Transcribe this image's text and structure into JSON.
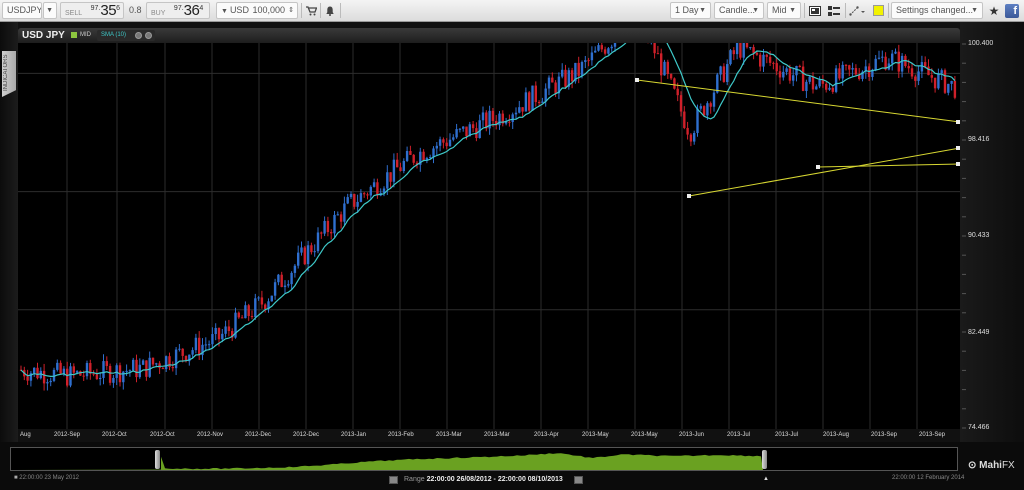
{
  "toolbar": {
    "symbol": "USDJPY",
    "sell_label": "SELL",
    "sell_price_prefix": "97.",
    "sell_price_big": "35",
    "sell_price_sup": "6",
    "spread": "0.8",
    "buy_label": "BUY",
    "buy_price_prefix": "97.",
    "buy_price_big": "36",
    "buy_price_sup": "4",
    "currency": "USD",
    "amount": "100,000",
    "timeframe": "1 Day",
    "chart_type": "Candle...",
    "price_type": "Mid",
    "settings": "Settings changed...",
    "icons": [
      "cart-icon",
      "bell-icon",
      "screenshot-icon",
      "layout-icon",
      "drawing-tool-icon",
      "color-swatch-icon",
      "star-icon",
      "facebook-icon"
    ],
    "color_swatch": "#f2f200"
  },
  "chart_header": {
    "symbol": "USD JPY",
    "mid_label": "MID",
    "indicator": "SMA (10)",
    "all_button": "ALL ✕",
    "indicators_tab": "INDICATORS"
  },
  "colors": {
    "bull": "#2f6fcf",
    "bear": "#d0202a",
    "sma": "#3ec9c9",
    "trendline": "#d8d832",
    "grid": "#2d2d2d",
    "navigator_fill": "#6aa121"
  },
  "navigator": {
    "start_date": "22:00:00 23 May 2012",
    "end_date": "22:00:00 12 February 2014",
    "range_label": "Range",
    "range_value": "22:00:00 26/08/2012 - 22:00:00 08/10/2013",
    "logo_main": "Mahi",
    "logo_fx": "FX"
  },
  "chart_data": {
    "type": "candlestick",
    "title": "USD JPY",
    "series": [
      {
        "name": "USDJPY Mid",
        "type": "candlestick"
      },
      {
        "name": "SMA (10)",
        "type": "line"
      }
    ],
    "y_ticks": [
      "100.400",
      "98.416",
      "90.433",
      "82.449",
      "74.466"
    ],
    "ylim": [
      74.466,
      100.4
    ],
    "x_ticks": [
      "Aug",
      "2012-Sep",
      "2012-Oct",
      "2012-Oct",
      "2012-Nov",
      "2012-Dec",
      "2012-Dec",
      "2013-Jan",
      "2013-Feb",
      "2013-Mar",
      "2013-Mar",
      "2013-Apr",
      "2013-May",
      "2013-May",
      "2013-Jun",
      "2013-Jul",
      "2013-Jul",
      "2013-Aug",
      "2013-Sep",
      "2013-Sep"
    ],
    "approx_close_path": [
      {
        "x": "2012-Aug",
        "y": 78.4
      },
      {
        "x": "2012-Sep",
        "y": 78.0
      },
      {
        "x": "2012-Oct",
        "y": 78.5
      },
      {
        "x": "2012-Nov",
        "y": 80.5
      },
      {
        "x": "2012-Dec",
        "y": 83.0
      },
      {
        "x": "2013-Jan",
        "y": 89.5
      },
      {
        "x": "2013-Feb",
        "y": 93.0
      },
      {
        "x": "2013-Mar",
        "y": 95.5
      },
      {
        "x": "2013-Apr",
        "y": 98.5
      },
      {
        "x": "2013-May",
        "y": 102.5
      },
      {
        "x": "2013-Jun",
        "y": 94.5
      },
      {
        "x": "2013-Jul",
        "y": 100.2
      },
      {
        "x": "2013-Aug",
        "y": 97.5
      },
      {
        "x": "2013-Sep",
        "y": 99.5
      },
      {
        "x": "2013-Oct",
        "y": 97.4
      }
    ],
    "annotations": [
      {
        "type": "trendline",
        "from": {
          "x": "2013-May",
          "y": 103.5
        },
        "to": {
          "x": "2013-Oct",
          "y": 100.0
        }
      },
      {
        "type": "trendline",
        "from": {
          "x": "2013-Jun",
          "y": 93.8
        },
        "to": {
          "x": "2013-Oct",
          "y": 98.2
        }
      },
      {
        "type": "horizontal",
        "from": {
          "x": "2013-Aug",
          "y": 96.3
        },
        "to": {
          "x": "2013-Oct",
          "y": 96.3
        }
      }
    ],
    "grid": true,
    "legend": "header bar, top-left"
  }
}
